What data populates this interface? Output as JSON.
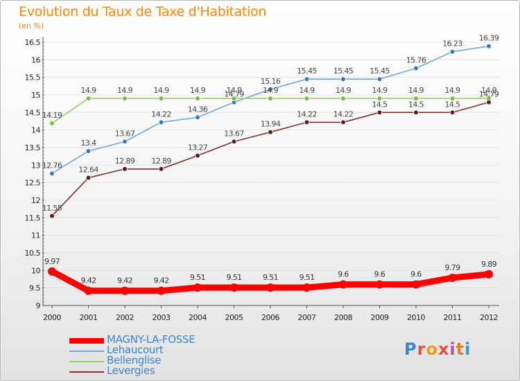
{
  "header": {
    "title": "Evolution du Taux de Taxe d'Habitation",
    "unit": "(en %)"
  },
  "logo": {
    "letters": [
      "P",
      "r",
      "o",
      "x",
      "i",
      "t",
      "i"
    ],
    "colors": [
      "#3d84cc",
      "#e74c3c",
      "#f39c12",
      "#e74c3c",
      "#9b59b6",
      "#e67e22",
      "#2e9cd8"
    ]
  },
  "chart_data": {
    "type": "line",
    "title": "Evolution du Taux de Taxe d'Habitation",
    "ylabel": "(en %)",
    "xlabel": "",
    "categories": [
      "2000",
      "2001",
      "2002",
      "2003",
      "2004",
      "2005",
      "2006",
      "2007",
      "2008",
      "2009",
      "2010",
      "2011",
      "2012"
    ],
    "ylim": [
      9,
      16.5
    ],
    "yticks": [
      "9",
      "9.5",
      "10",
      "10.5",
      "11",
      "11.5",
      "12",
      "12.5",
      "13",
      "13.5",
      "14",
      "14.5",
      "15",
      "15.5",
      "16",
      "16.5"
    ],
    "series": [
      {
        "name": "Lehaucourt",
        "color": "#6fa8dc",
        "dot": "#3c78b4",
        "values": [
          12.76,
          13.4,
          13.67,
          14.22,
          14.36,
          14.79,
          15.16,
          15.45,
          15.45,
          15.45,
          15.76,
          16.23,
          16.39
        ],
        "labels": [
          "12.76",
          "13.4",
          "13.67",
          "14.22",
          "14.36",
          "14.79",
          "15.16",
          "15.45",
          "15.45",
          "15.45",
          "15.76",
          "16.23",
          "16.39"
        ]
      },
      {
        "name": "Bellenglise",
        "color": "#9ad06a",
        "dot": "#6cc23b",
        "values": [
          14.19,
          14.9,
          14.9,
          14.9,
          14.9,
          14.9,
          14.9,
          14.9,
          14.9,
          14.9,
          14.9,
          14.9,
          14.9
        ],
        "labels": [
          "14.19",
          "14.9",
          "14.9",
          "14.9",
          "14.9",
          "14.9",
          "14.9",
          "14.9",
          "14.9",
          "14.9",
          "14.9",
          "14.9",
          "14.9"
        ]
      },
      {
        "name": "Levergies",
        "color": "#7b3232",
        "dot": "#5a1e1e",
        "values": [
          11.55,
          12.64,
          12.89,
          12.89,
          13.27,
          13.67,
          13.94,
          14.22,
          14.22,
          14.5,
          14.5,
          14.5,
          14.79
        ],
        "labels": [
          "11.55",
          "12.64",
          "12.89",
          "12.89",
          "13.27",
          "13.67",
          "13.94",
          "14.22",
          "14.22",
          "14.5",
          "14.5",
          "14.5",
          "14.79"
        ]
      },
      {
        "name": "MAGNY-LA-FOSSE",
        "color": "#ff0000",
        "dot": "#ff0000",
        "values": [
          9.97,
          9.42,
          9.42,
          9.42,
          9.51,
          9.51,
          9.51,
          9.51,
          9.6,
          9.6,
          9.6,
          9.79,
          9.89
        ],
        "labels": [
          "9.97",
          "9.42",
          "9.42",
          "9.42",
          "9.51",
          "9.51",
          "9.51",
          "9.51",
          "9.6",
          "9.6",
          "9.6",
          "9.79",
          "9.89"
        ]
      }
    ],
    "legend": [
      {
        "name": "MAGNY-LA-FOSSE",
        "color": "#ff0000",
        "thick": true
      },
      {
        "name": "Lehaucourt",
        "color": "#6fa8dc",
        "thick": false
      },
      {
        "name": "Bellenglise",
        "color": "#9ad06a",
        "thick": false
      },
      {
        "name": "Levergies",
        "color": "#7b3232",
        "thick": false
      }
    ]
  }
}
